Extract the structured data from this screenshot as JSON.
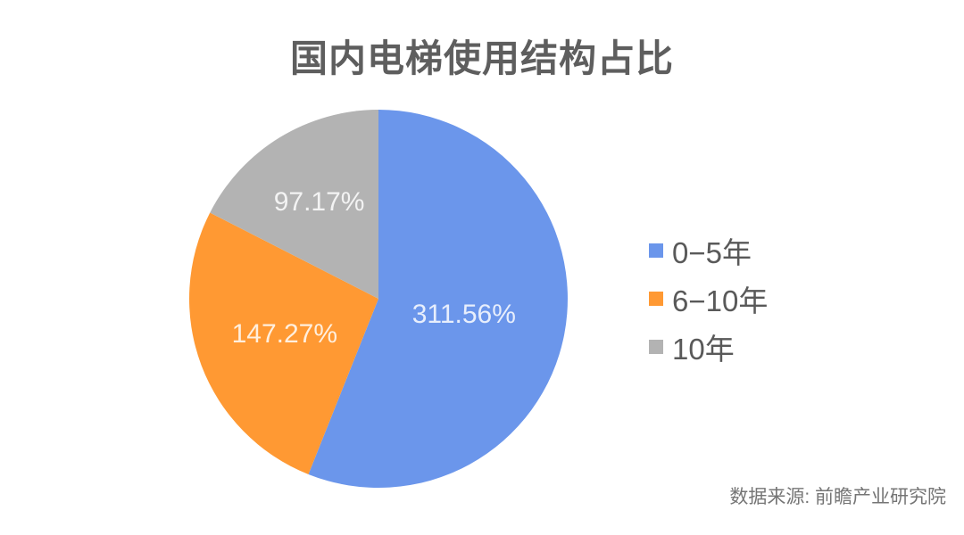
{
  "title": "国内电梯使用结构占比",
  "source": "数据来源: 前瞻产业研究院",
  "colors": {
    "background": "#ffffff",
    "title_text": "#5e5e5e",
    "legend_text": "#595959",
    "source_text": "#757575",
    "slice_label_text": "rgba(255,255,255,0.84)"
  },
  "chart_data": {
    "type": "pie",
    "title": "国内电梯使用结构占比",
    "legend_position": "right",
    "start_angle_deg": 0,
    "direction": "clockwise",
    "total": 556.0,
    "series": [
      {
        "name": "0−5年",
        "value": 311.56,
        "label": "311.56%",
        "color": "#6B96EB"
      },
      {
        "name": "6−10年",
        "value": 147.27,
        "label": "147.27%",
        "color": "#FF9933"
      },
      {
        "name": "10年",
        "value": 97.17,
        "label": "97.17%",
        "color": "#B3B3B3"
      }
    ]
  }
}
